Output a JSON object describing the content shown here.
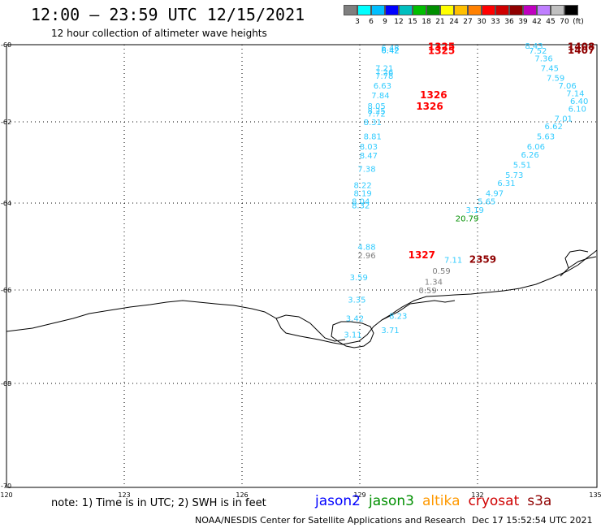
{
  "title": "12:00 – 23:59 UTC 12/15/2021",
  "subtitle": "12 hour collection of altimeter wave heights",
  "colorbar": {
    "colors": [
      "#7f7f7f",
      "#00ffff",
      "#00bfff",
      "#0000ff",
      "#00bfbf",
      "#00bf00",
      "#008f00",
      "#ffff00",
      "#ffbf00",
      "#ff8000",
      "#ff0000",
      "#cf0000",
      "#8f0000",
      "#bf00bf",
      "#bf7fff",
      "#c0c0c0",
      "#000000"
    ],
    "labels": [
      "3",
      "6",
      "9",
      "12",
      "15",
      "18",
      "21",
      "24",
      "27",
      "30",
      "33",
      "36",
      "39",
      "42",
      "45",
      "70",
      "(ft)"
    ]
  },
  "axes": {
    "lat_labels": [
      "-60",
      "-62",
      "-64",
      "-66",
      "-68",
      "-70"
    ],
    "lon_labels": [
      "120",
      "123",
      "126",
      "129",
      "132",
      "135"
    ]
  },
  "observations": [
    {
      "lat": -60.07,
      "lon": 129.75,
      "text": "6.48",
      "color": "#33ccff"
    },
    {
      "lat": -60.14,
      "lon": 129.75,
      "text": "6.42",
      "color": "#00bfff"
    },
    {
      "lat": -60.05,
      "lon": 131.05,
      "text": "1325",
      "color": "#ff0000"
    },
    {
      "lat": -60.16,
      "lon": 131.05,
      "text": "1325",
      "color": "#ff0000"
    },
    {
      "lat": -60.6,
      "lon": 129.6,
      "text": "7.21",
      "color": "#33ccff"
    },
    {
      "lat": -60.7,
      "lon": 129.6,
      "text": "7.26",
      "color": "#33ccff"
    },
    {
      "lat": -60.8,
      "lon": 129.6,
      "text": "7.78",
      "color": "#33ccff"
    },
    {
      "lat": -61.05,
      "lon": 129.55,
      "text": "6.63",
      "color": "#33ccff"
    },
    {
      "lat": -61.3,
      "lon": 129.5,
      "text": "7.84",
      "color": "#33ccff"
    },
    {
      "lat": -61.3,
      "lon": 130.85,
      "text": "1326",
      "color": "#ff0000"
    },
    {
      "lat": -61.58,
      "lon": 129.4,
      "text": "8.05",
      "color": "#33ccff"
    },
    {
      "lat": -61.6,
      "lon": 130.75,
      "text": "1326",
      "color": "#ff0000"
    },
    {
      "lat": -61.7,
      "lon": 129.4,
      "text": "8.25",
      "color": "#33ccff"
    },
    {
      "lat": -61.78,
      "lon": 129.4,
      "text": "7.72",
      "color": "#33ccff"
    },
    {
      "lat": -62.0,
      "lon": 129.3,
      "text": "8.31",
      "color": "#33ccff"
    },
    {
      "lat": -62.35,
      "lon": 129.3,
      "text": "8.81",
      "color": "#33ccff"
    },
    {
      "lat": -62.6,
      "lon": 129.2,
      "text": "8.03",
      "color": "#33ccff"
    },
    {
      "lat": -62.82,
      "lon": 129.2,
      "text": "8.47",
      "color": "#33ccff"
    },
    {
      "lat": -63.15,
      "lon": 129.15,
      "text": "7.38",
      "color": "#33ccff"
    },
    {
      "lat": -63.55,
      "lon": 129.05,
      "text": "8.22",
      "color": "#33ccff"
    },
    {
      "lat": -63.75,
      "lon": 129.05,
      "text": "8.19",
      "color": "#33ccff"
    },
    {
      "lat": -63.95,
      "lon": 129.0,
      "text": "8.04",
      "color": "#33ccff"
    },
    {
      "lat": -64.05,
      "lon": 129.0,
      "text": "8.32",
      "color": "#33ccff"
    },
    {
      "lat": -60.02,
      "lon": 133.4,
      "text": "8.43",
      "color": "#33ccff"
    },
    {
      "lat": -60.15,
      "lon": 133.5,
      "text": "7.52",
      "color": "#33ccff"
    },
    {
      "lat": -60.05,
      "lon": 134.6,
      "text": "1408",
      "color": "#8f0000"
    },
    {
      "lat": -60.15,
      "lon": 134.6,
      "text": "1407",
      "color": "#8f0000"
    },
    {
      "lat": -60.35,
      "lon": 133.65,
      "text": "7.36",
      "color": "#33ccff"
    },
    {
      "lat": -60.6,
      "lon": 133.8,
      "text": "7.45",
      "color": "#33ccff"
    },
    {
      "lat": -60.85,
      "lon": 133.95,
      "text": "7.59",
      "color": "#33ccff"
    },
    {
      "lat": -61.05,
      "lon": 134.25,
      "text": "7.06",
      "color": "#33ccff"
    },
    {
      "lat": -61.25,
      "lon": 134.45,
      "text": "7.14",
      "color": "#33ccff"
    },
    {
      "lat": -61.45,
      "lon": 134.55,
      "text": "6.40",
      "color": "#33ccff"
    },
    {
      "lat": -61.65,
      "lon": 134.5,
      "text": "6.10",
      "color": "#33ccff"
    },
    {
      "lat": -61.9,
      "lon": 134.15,
      "text": "7.01",
      "color": "#33ccff"
    },
    {
      "lat": -62.1,
      "lon": 133.9,
      "text": "6.62",
      "color": "#33ccff"
    },
    {
      "lat": -62.35,
      "lon": 133.7,
      "text": "5.63",
      "color": "#33ccff"
    },
    {
      "lat": -62.6,
      "lon": 133.45,
      "text": "6.06",
      "color": "#33ccff"
    },
    {
      "lat": -62.8,
      "lon": 133.3,
      "text": "6.26",
      "color": "#33ccff"
    },
    {
      "lat": -63.05,
      "lon": 133.1,
      "text": "5.51",
      "color": "#33ccff"
    },
    {
      "lat": -63.3,
      "lon": 132.9,
      "text": "5.73",
      "color": "#33ccff"
    },
    {
      "lat": -63.5,
      "lon": 132.7,
      "text": "6.31",
      "color": "#33ccff"
    },
    {
      "lat": -63.75,
      "lon": 132.4,
      "text": "4.97",
      "color": "#33ccff"
    },
    {
      "lat": -63.95,
      "lon": 132.2,
      "text": "5.65",
      "color": "#33ccff"
    },
    {
      "lat": -64.15,
      "lon": 131.9,
      "text": "3.19",
      "color": "#33ccff"
    },
    {
      "lat": -64.35,
      "lon": 131.7,
      "text": "20.79",
      "color": "#008f00"
    },
    {
      "lat": -65.0,
      "lon": 129.15,
      "text": "4.88",
      "color": "#33ccff"
    },
    {
      "lat": -65.2,
      "lon": 129.15,
      "text": "2.96",
      "color": "#7f7f7f"
    },
    {
      "lat": -65.2,
      "lon": 130.55,
      "text": "1327",
      "color": "#ff0000"
    },
    {
      "lat": -65.3,
      "lon": 131.35,
      "text": "7.11",
      "color": "#33ccff"
    },
    {
      "lat": -65.3,
      "lon": 132.1,
      "text": "2359",
      "color": "#8f0000"
    },
    {
      "lat": -65.55,
      "lon": 131.05,
      "text": "0.59",
      "color": "#7f7f7f"
    },
    {
      "lat": -65.7,
      "lon": 128.95,
      "text": "3.59",
      "color": "#33ccff"
    },
    {
      "lat": -65.8,
      "lon": 130.85,
      "text": "1.34",
      "color": "#7f7f7f"
    },
    {
      "lat": -66.0,
      "lon": 130.7,
      "text": "0.59",
      "color": "#7f7f7f"
    },
    {
      "lat": -66.2,
      "lon": 128.9,
      "text": "3.35",
      "color": "#33ccff"
    },
    {
      "lat": -66.55,
      "lon": 129.95,
      "text": "8.23",
      "color": "#33ccff"
    },
    {
      "lat": -66.6,
      "lon": 128.85,
      "text": "3.42",
      "color": "#33ccff"
    },
    {
      "lat": -66.85,
      "lon": 129.75,
      "text": "3.71",
      "color": "#33ccff"
    },
    {
      "lat": -66.95,
      "lon": 128.8,
      "text": "3.11",
      "color": "#33ccff"
    }
  ],
  "note": "note:  1) Time is in UTC;  2) SWH is in feet",
  "satellites": [
    {
      "name": "jason2",
      "color": "#0000ff"
    },
    {
      "name": "jason3",
      "color": "#008f00"
    },
    {
      "name": "altika",
      "color": "#ff9900"
    },
    {
      "name": "cryosat",
      "color": "#cf0000"
    },
    {
      "name": "s3a",
      "color": "#8f0000"
    }
  ],
  "credit": "NOAA/NESDIS Center for Satellite Applications and Research",
  "timestamp": "Dec 17 15:52:54 UTC 2021"
}
